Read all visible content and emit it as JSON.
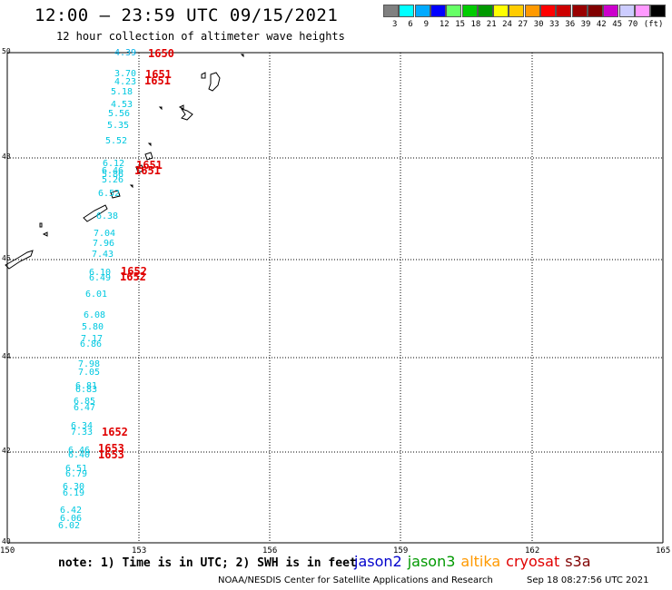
{
  "header": {
    "title": "12:00 – 23:59 UTC 09/15/2021",
    "subtitle": "12 hour collection of altimeter wave heights"
  },
  "legend": {
    "colors": [
      "#808080",
      "#00ffff",
      "#00aaff",
      "#0000ff",
      "#66ff66",
      "#00cc00",
      "#009900",
      "#ffff00",
      "#ffcc00",
      "#ff9900",
      "#ff0000",
      "#cc0000",
      "#990000",
      "#800000",
      "#cc00cc",
      "#ccccff",
      "#ff99ff",
      "#000000"
    ],
    "labels": [
      "3",
      "6",
      "9",
      "12",
      "15",
      "18",
      "21",
      "24",
      "27",
      "30",
      "33",
      "36",
      "39",
      "42",
      "45",
      "70",
      "(ft)"
    ]
  },
  "map": {
    "lat_labels": [
      "50",
      "48",
      "46",
      "44",
      "42",
      "40"
    ],
    "lon_labels": [
      "150",
      "153",
      "156",
      "159",
      "162",
      "165"
    ],
    "swh_values": [
      "4.39",
      "3.70",
      "4.23",
      "5.18",
      "4.53",
      "5.56",
      "5.35",
      "5.52",
      "6.12",
      "6.46",
      "5.86",
      "5.26",
      "6.52",
      "6.38",
      "7.04",
      "7.96",
      "7.43",
      "6.10",
      "6.49",
      "6.01",
      "6.08",
      "5.80",
      "7.17",
      "6.86",
      "7.98",
      "7.05",
      "6.81",
      "6.83",
      "6.85",
      "6.47",
      "6.34",
      "7.33",
      "6.46",
      "6.40",
      "6.51",
      "6.79",
      "6.30",
      "6.19",
      "6.42",
      "6.06",
      "6.02"
    ],
    "time_labels": [
      "1650",
      "1651",
      "1651",
      "1651",
      "1651",
      "1652",
      "1652",
      "1652",
      "1653",
      "1653"
    ]
  },
  "footer": {
    "note": "note: 1) Time is in UTC; 2) SWH is in feet",
    "satellites": [
      {
        "name": "jason2",
        "color": "#0000cc"
      },
      {
        "name": "jason3",
        "color": "#009900"
      },
      {
        "name": "altika",
        "color": "#ff9900"
      },
      {
        "name": "cryosat",
        "color": "#e00000"
      },
      {
        "name": "s3a",
        "color": "#800000"
      }
    ],
    "credit": "NOAA/NESDIS Center for Satellite Applications and Research",
    "timestamp": "Sep 18 08:27:56 UTC 2021"
  }
}
